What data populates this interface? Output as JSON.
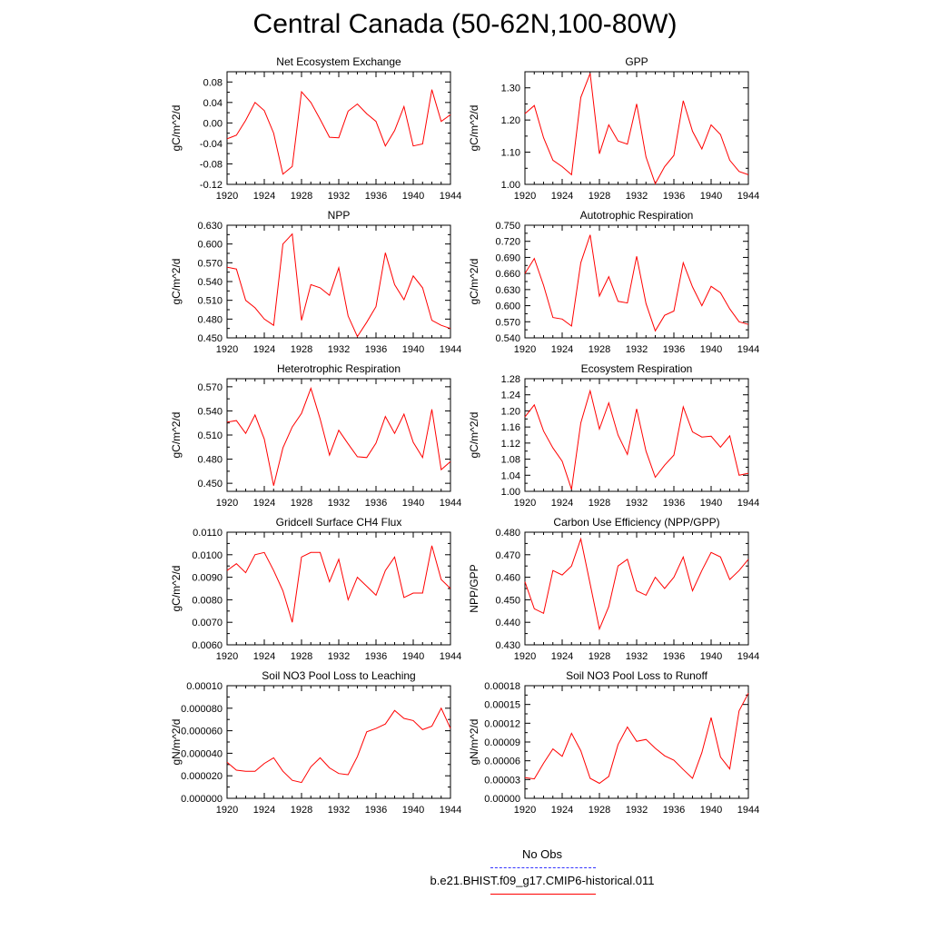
{
  "title": "Central Canada (50-62N,100-80W)",
  "legend": {
    "obs_label": "No Obs",
    "obs_color": "#3333ff",
    "model_label": "b.e21.BHIST.f09_g17.CMIP6-historical.011",
    "model_color": "#ff0000"
  },
  "chart_data": [
    {
      "type": "line",
      "title": "Net Ecosystem Exchange",
      "ylabel": "gC/m^2/d",
      "xlabel": "",
      "xlim": [
        1920,
        1944
      ],
      "ylim": [
        -0.12,
        0.1
      ],
      "xticks": [
        "1920",
        "1924",
        "1928",
        "1932",
        "1936",
        "1940",
        "1944"
      ],
      "yticks": [
        "-0.12",
        "-0.08",
        "-0.04",
        "0.00",
        "0.04",
        "0.08"
      ],
      "x": [
        1920,
        1921,
        1922,
        1923,
        1924,
        1925,
        1926,
        1927,
        1928,
        1929,
        1930,
        1931,
        1932,
        1933,
        1934,
        1935,
        1936,
        1937,
        1938,
        1939,
        1940,
        1941,
        1942,
        1943,
        1944
      ],
      "series": [
        {
          "values": [
            -0.031,
            -0.024,
            0.005,
            0.04,
            0.024,
            -0.02,
            -0.1,
            -0.085,
            0.061,
            0.04,
            0.007,
            -0.028,
            -0.029,
            0.023,
            0.037,
            0.018,
            0.003,
            -0.045,
            -0.015,
            0.032,
            -0.045,
            -0.041,
            0.065,
            0.003,
            0.016
          ]
        }
      ]
    },
    {
      "type": "line",
      "title": "GPP",
      "ylabel": "gC/m^2/d",
      "xlabel": "",
      "xlim": [
        1920,
        1944
      ],
      "ylim": [
        1.0,
        1.35
      ],
      "xticks": [
        "1920",
        "1924",
        "1928",
        "1932",
        "1936",
        "1940",
        "1944"
      ],
      "yticks": [
        "1.00",
        "1.10",
        "1.20",
        "1.30"
      ],
      "x": [
        1920,
        1921,
        1922,
        1923,
        1924,
        1925,
        1926,
        1927,
        1928,
        1929,
        1930,
        1931,
        1932,
        1933,
        1934,
        1935,
        1936,
        1937,
        1938,
        1939,
        1940,
        1941,
        1942,
        1943,
        1944
      ],
      "series": [
        {
          "values": [
            1.22,
            1.245,
            1.145,
            1.075,
            1.055,
            1.03,
            1.27,
            1.345,
            1.095,
            1.185,
            1.135,
            1.125,
            1.25,
            1.085,
            1.002,
            1.055,
            1.09,
            1.26,
            1.165,
            1.11,
            1.185,
            1.155,
            1.075,
            1.04,
            1.03
          ]
        }
      ]
    },
    {
      "type": "line",
      "title": "NPP",
      "ylabel": "gC/m^2/d",
      "xlabel": "",
      "xlim": [
        1920,
        1944
      ],
      "ylim": [
        0.45,
        0.63
      ],
      "xticks": [
        "1920",
        "1924",
        "1928",
        "1932",
        "1936",
        "1940",
        "1944"
      ],
      "yticks": [
        "0.450",
        "0.480",
        "0.510",
        "0.540",
        "0.570",
        "0.600",
        "0.630"
      ],
      "x": [
        1920,
        1921,
        1922,
        1923,
        1924,
        1925,
        1926,
        1927,
        1928,
        1929,
        1930,
        1931,
        1932,
        1933,
        1934,
        1935,
        1936,
        1937,
        1938,
        1939,
        1940,
        1941,
        1942,
        1943,
        1944
      ],
      "series": [
        {
          "values": [
            0.563,
            0.56,
            0.51,
            0.498,
            0.48,
            0.47,
            0.6,
            0.616,
            0.478,
            0.535,
            0.53,
            0.518,
            0.562,
            0.485,
            0.452,
            0.475,
            0.5,
            0.586,
            0.535,
            0.511,
            0.549,
            0.53,
            0.478,
            0.47,
            0.465
          ]
        }
      ]
    },
    {
      "type": "line",
      "title": "Autotrophic Respiration",
      "ylabel": "gC/m^2/d",
      "xlabel": "",
      "xlim": [
        1920,
        1944
      ],
      "ylim": [
        0.54,
        0.75
      ],
      "xticks": [
        "1920",
        "1924",
        "1928",
        "1932",
        "1936",
        "1940",
        "1944"
      ],
      "yticks": [
        "0.540",
        "0.570",
        "0.600",
        "0.630",
        "0.660",
        "0.690",
        "0.720",
        "0.750"
      ],
      "x": [
        1920,
        1921,
        1922,
        1923,
        1924,
        1925,
        1926,
        1927,
        1928,
        1929,
        1930,
        1931,
        1932,
        1933,
        1934,
        1935,
        1936,
        1937,
        1938,
        1939,
        1940,
        1941,
        1942,
        1943,
        1944
      ],
      "series": [
        {
          "values": [
            0.66,
            0.688,
            0.638,
            0.578,
            0.575,
            0.562,
            0.68,
            0.732,
            0.618,
            0.654,
            0.608,
            0.605,
            0.692,
            0.604,
            0.553,
            0.582,
            0.59,
            0.68,
            0.635,
            0.6,
            0.636,
            0.624,
            0.594,
            0.57,
            0.565
          ]
        }
      ]
    },
    {
      "type": "line",
      "title": "Heterotrophic Respiration",
      "ylabel": "gC/m^2/d",
      "xlabel": "",
      "xlim": [
        1920,
        1944
      ],
      "ylim": [
        0.44,
        0.58
      ],
      "xticks": [
        "1920",
        "1924",
        "1928",
        "1932",
        "1936",
        "1940",
        "1944"
      ],
      "yticks": [
        "0.450",
        "0.480",
        "0.510",
        "0.540",
        "0.570"
      ],
      "x": [
        1920,
        1921,
        1922,
        1923,
        1924,
        1925,
        1926,
        1927,
        1928,
        1929,
        1930,
        1931,
        1932,
        1933,
        1934,
        1935,
        1936,
        1937,
        1938,
        1939,
        1940,
        1941,
        1942,
        1943,
        1944
      ],
      "series": [
        {
          "values": [
            0.526,
            0.528,
            0.512,
            0.535,
            0.505,
            0.447,
            0.494,
            0.52,
            0.537,
            0.568,
            0.53,
            0.485,
            0.516,
            0.499,
            0.483,
            0.482,
            0.5,
            0.533,
            0.512,
            0.536,
            0.501,
            0.482,
            0.542,
            0.467,
            0.477
          ]
        }
      ]
    },
    {
      "type": "line",
      "title": "Ecosystem Respiration",
      "ylabel": "gC/m^2/d",
      "xlabel": "",
      "xlim": [
        1920,
        1944
      ],
      "ylim": [
        1.0,
        1.28
      ],
      "xticks": [
        "1920",
        "1924",
        "1928",
        "1932",
        "1936",
        "1940",
        "1944"
      ],
      "yticks": [
        "1.00",
        "1.04",
        "1.08",
        "1.12",
        "1.16",
        "1.20",
        "1.24",
        "1.28"
      ],
      "x": [
        1920,
        1921,
        1922,
        1923,
        1924,
        1925,
        1926,
        1927,
        1928,
        1929,
        1930,
        1931,
        1932,
        1933,
        1934,
        1935,
        1936,
        1937,
        1938,
        1939,
        1940,
        1941,
        1942,
        1943,
        1944
      ],
      "series": [
        {
          "values": [
            1.185,
            1.215,
            1.15,
            1.108,
            1.075,
            1.005,
            1.17,
            1.25,
            1.155,
            1.22,
            1.14,
            1.092,
            1.205,
            1.1,
            1.035,
            1.065,
            1.09,
            1.21,
            1.148,
            1.135,
            1.137,
            1.11,
            1.138,
            1.04,
            1.045
          ]
        }
      ]
    },
    {
      "type": "line",
      "title": "Gridcell Surface CH4 Flux",
      "ylabel": "gC/m^2/d",
      "xlabel": "",
      "xlim": [
        1920,
        1944
      ],
      "ylim": [
        0.006,
        0.011
      ],
      "xticks": [
        "1920",
        "1924",
        "1928",
        "1932",
        "1936",
        "1940",
        "1944"
      ],
      "yticks": [
        "0.0060",
        "0.0070",
        "0.0080",
        "0.0090",
        "0.0100",
        "0.0110"
      ],
      "x": [
        1920,
        1921,
        1922,
        1923,
        1924,
        1925,
        1926,
        1927,
        1928,
        1929,
        1930,
        1931,
        1932,
        1933,
        1934,
        1935,
        1936,
        1937,
        1938,
        1939,
        1940,
        1941,
        1942,
        1943,
        1944
      ],
      "series": [
        {
          "values": [
            0.0093,
            0.0096,
            0.0092,
            0.01,
            0.0101,
            0.0093,
            0.0084,
            0.007,
            0.0099,
            0.0101,
            0.0101,
            0.0088,
            0.0098,
            0.008,
            0.009,
            0.0086,
            0.0082,
            0.0093,
            0.0099,
            0.0081,
            0.0083,
            0.0083,
            0.0104,
            0.0089,
            0.0085
          ]
        }
      ]
    },
    {
      "type": "line",
      "title": "Carbon Use Efficiency (NPP/GPP)",
      "ylabel": "NPP/GPP",
      "xlabel": "",
      "xlim": [
        1920,
        1944
      ],
      "ylim": [
        0.43,
        0.48
      ],
      "xticks": [
        "1920",
        "1924",
        "1928",
        "1932",
        "1936",
        "1940",
        "1944"
      ],
      "yticks": [
        "0.430",
        "0.440",
        "0.450",
        "0.460",
        "0.470",
        "0.480"
      ],
      "x": [
        1920,
        1921,
        1922,
        1923,
        1924,
        1925,
        1926,
        1927,
        1928,
        1929,
        1930,
        1931,
        1932,
        1933,
        1934,
        1935,
        1936,
        1937,
        1938,
        1939,
        1940,
        1941,
        1942,
        1943,
        1944
      ],
      "series": [
        {
          "values": [
            0.458,
            0.446,
            0.444,
            0.463,
            0.461,
            0.465,
            0.477,
            0.457,
            0.437,
            0.447,
            0.465,
            0.468,
            0.454,
            0.452,
            0.46,
            0.455,
            0.46,
            0.469,
            0.454,
            0.463,
            0.471,
            0.469,
            0.459,
            0.463,
            0.468
          ]
        }
      ]
    },
    {
      "type": "line",
      "title": "Soil NO3 Pool Loss to Leaching",
      "ylabel": "gN/m^2/d",
      "xlabel": "",
      "xlim": [
        1920,
        1944
      ],
      "ylim": [
        0,
        0.0001
      ],
      "xticks": [
        "1920",
        "1924",
        "1928",
        "1932",
        "1936",
        "1940",
        "1944"
      ],
      "yticks": [
        "0.000000",
        "0.000020",
        "0.000040",
        "0.000060",
        "0.000080",
        "0.00010"
      ],
      "x": [
        1920,
        1921,
        1922,
        1923,
        1924,
        1925,
        1926,
        1927,
        1928,
        1929,
        1930,
        1931,
        1932,
        1933,
        1934,
        1935,
        1936,
        1937,
        1938,
        1939,
        1940,
        1941,
        1942,
        1943,
        1944
      ],
      "series": [
        {
          "values": [
            3.2e-05,
            2.5e-05,
            2.4e-05,
            2.4e-05,
            3.1e-05,
            3.6e-05,
            2.4e-05,
            1.6e-05,
            1.4e-05,
            2.8e-05,
            3.6e-05,
            2.7e-05,
            2.2e-05,
            2.1e-05,
            3.7e-05,
            5.9e-05,
            6.2e-05,
            6.6e-05,
            7.8e-05,
            7.1e-05,
            6.9e-05,
            6.1e-05,
            6.4e-05,
            8e-05,
            6.2e-05
          ]
        }
      ]
    },
    {
      "type": "line",
      "title": "Soil NO3 Pool Loss to Runoff",
      "ylabel": "gN/m^2/d",
      "xlabel": "",
      "xlim": [
        1920,
        1944
      ],
      "ylim": [
        0,
        0.00018
      ],
      "xticks": [
        "1920",
        "1924",
        "1928",
        "1932",
        "1936",
        "1940",
        "1944"
      ],
      "yticks": [
        "0.00000",
        "0.00003",
        "0.00006",
        "0.00009",
        "0.00012",
        "0.00015",
        "0.00018"
      ],
      "x": [
        1920,
        1921,
        1922,
        1923,
        1924,
        1925,
        1926,
        1927,
        1928,
        1929,
        1930,
        1931,
        1932,
        1933,
        1934,
        1935,
        1936,
        1937,
        1938,
        1939,
        1940,
        1941,
        1942,
        1943,
        1944
      ],
      "series": [
        {
          "values": [
            3.3e-05,
            3.1e-05,
            5.6e-05,
            7.9e-05,
            6.7e-05,
            0.000104,
            7.6e-05,
            3.2e-05,
            2.4e-05,
            3.5e-05,
            8.6e-05,
            0.000114,
            9.1e-05,
            9.4e-05,
            8e-05,
            6.8e-05,
            6.1e-05,
            4.6e-05,
            3.2e-05,
            7.3e-05,
            0.000129,
            6.6e-05,
            4.7e-05,
            0.00014,
            0.000168
          ]
        }
      ]
    }
  ]
}
